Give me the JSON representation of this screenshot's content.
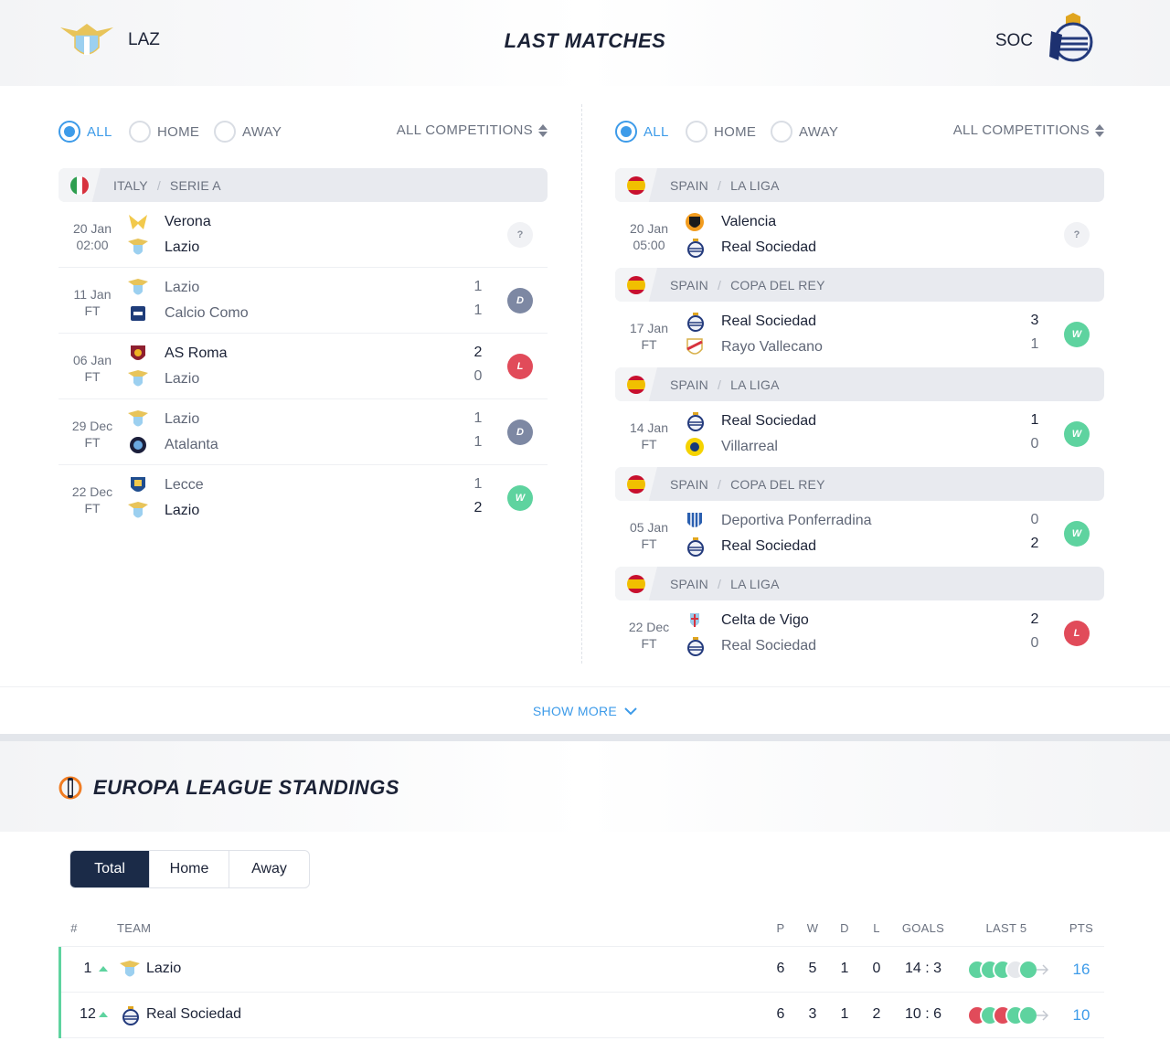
{
  "header": {
    "title": "LAST MATCHES",
    "home_abbr": "LAZ",
    "away_abbr": "SOC"
  },
  "left": {
    "filters": {
      "all": "ALL",
      "home": "HOME",
      "away": "AWAY",
      "competitions": "ALL COMPETITIONS",
      "selected": "ALL"
    },
    "groups": [
      {
        "country": "ITALY",
        "league": "SERIE A",
        "flag": "italy",
        "matches": [
          {
            "date": "20 Jan",
            "time": "02:00",
            "team1": "Verona",
            "team2": "Lazio",
            "score1": "",
            "score2": "",
            "result": "?",
            "winner": "none-upcoming"
          },
          {
            "date": "11 Jan",
            "time": "FT",
            "team1": "Lazio",
            "team2": "Calcio Como",
            "score1": "1",
            "score2": "1",
            "result": "D",
            "winner": "none"
          },
          {
            "date": "06 Jan",
            "time": "FT",
            "team1": "AS Roma",
            "team2": "Lazio",
            "score1": "2",
            "score2": "0",
            "result": "L",
            "winner": "1"
          },
          {
            "date": "29 Dec",
            "time": "FT",
            "team1": "Lazio",
            "team2": "Atalanta",
            "score1": "1",
            "score2": "1",
            "result": "D",
            "winner": "none"
          },
          {
            "date": "22 Dec",
            "time": "FT",
            "team1": "Lecce",
            "team2": "Lazio",
            "score1": "1",
            "score2": "2",
            "result": "W",
            "winner": "2"
          }
        ]
      }
    ]
  },
  "right": {
    "filters": {
      "all": "ALL",
      "home": "HOME",
      "away": "AWAY",
      "competitions": "ALL COMPETITIONS",
      "selected": "ALL"
    },
    "groups": [
      {
        "country": "SPAIN",
        "league": "LA LIGA",
        "flag": "spain",
        "matches": [
          {
            "date": "20 Jan",
            "time": "05:00",
            "team1": "Valencia",
            "team2": "Real Sociedad",
            "score1": "",
            "score2": "",
            "result": "?",
            "winner": "none-upcoming"
          }
        ]
      },
      {
        "country": "SPAIN",
        "league": "COPA DEL REY",
        "flag": "spain",
        "matches": [
          {
            "date": "17 Jan",
            "time": "FT",
            "team1": "Real Sociedad",
            "team2": "Rayo Vallecano",
            "score1": "3",
            "score2": "1",
            "result": "W",
            "winner": "1"
          }
        ]
      },
      {
        "country": "SPAIN",
        "league": "LA LIGA",
        "flag": "spain",
        "matches": [
          {
            "date": "14 Jan",
            "time": "FT",
            "team1": "Real Sociedad",
            "team2": "Villarreal",
            "score1": "1",
            "score2": "0",
            "result": "W",
            "winner": "1"
          }
        ]
      },
      {
        "country": "SPAIN",
        "league": "COPA DEL REY",
        "flag": "spain",
        "matches": [
          {
            "date": "05 Jan",
            "time": "FT",
            "team1": "Deportiva Ponferradina",
            "team2": "Real Sociedad",
            "score1": "0",
            "score2": "2",
            "result": "W",
            "winner": "2"
          }
        ]
      },
      {
        "country": "SPAIN",
        "league": "LA LIGA",
        "flag": "spain",
        "matches": [
          {
            "date": "22 Dec",
            "time": "FT",
            "team1": "Celta de Vigo",
            "team2": "Real Sociedad",
            "score1": "2",
            "score2": "0",
            "result": "L",
            "winner": "1"
          }
        ]
      }
    ]
  },
  "show_more": "SHOW MORE",
  "standings": {
    "title": "EUROPA LEAGUE STANDINGS",
    "tabs": [
      "Total",
      "Home",
      "Away"
    ],
    "active_tab": "Total",
    "columns": {
      "pos": "#",
      "team": "TEAM",
      "p": "P",
      "w": "W",
      "d": "D",
      "l": "L",
      "goals": "GOALS",
      "last5": "LAST 5",
      "pts": "PTS"
    },
    "rows": [
      {
        "pos": "1",
        "team": "Lazio",
        "p": "6",
        "w": "5",
        "d": "1",
        "l": "0",
        "goals": "14 : 3",
        "last5": [
          "W",
          "W",
          "W",
          "D",
          "W"
        ],
        "pts": "16",
        "trend": "up"
      },
      {
        "pos": "12",
        "team": "Real Sociedad",
        "p": "6",
        "w": "3",
        "d": "1",
        "l": "2",
        "goals": "10 : 6",
        "last5": [
          "L",
          "W",
          "L",
          "W",
          "W"
        ],
        "pts": "10",
        "trend": "up"
      }
    ]
  },
  "colors": {
    "accent": "#3d9be9",
    "win": "#5ed39f",
    "draw": "#7d88a3",
    "loss": "#e14b5a",
    "dark": "#1b2b48"
  }
}
